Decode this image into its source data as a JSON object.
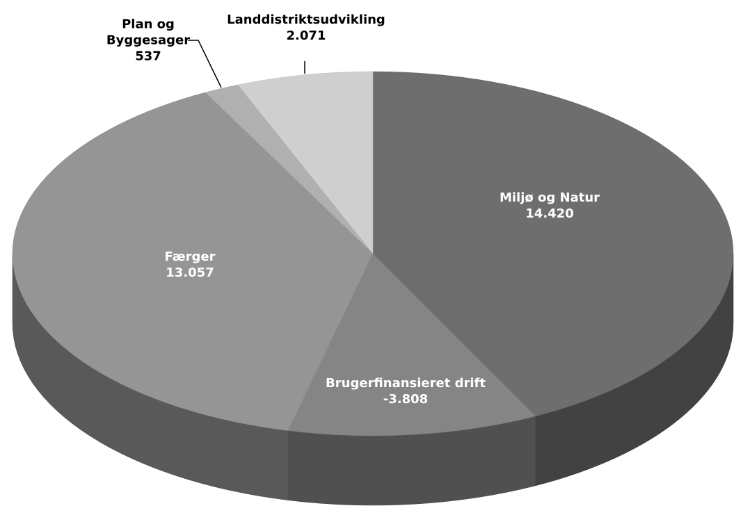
{
  "chart_data": {
    "type": "pie",
    "categories": [
      "Miljø og Natur",
      "Brugerfinansieret drift",
      "Færger",
      "Plan og Byggesager",
      "Landdistriktsudvikling"
    ],
    "values": [
      14420,
      -3808,
      13057,
      537,
      2071
    ],
    "value_labels": [
      "14.420",
      "-3.808",
      "13.057",
      "537",
      "2.071"
    ],
    "colors": [
      "#6e6e6e",
      "#858585",
      "#959595",
      "#b0b0b0",
      "#cfcfcf"
    ]
  }
}
